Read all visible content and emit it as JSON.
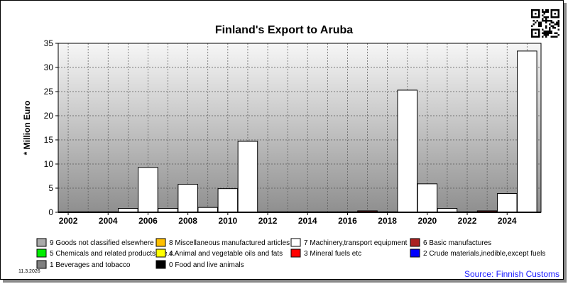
{
  "chart_data": {
    "type": "bar",
    "title": "Finland's Export to Aruba",
    "ylabel": "* Million Euro",
    "ylim": [
      0,
      35
    ],
    "yticks": [
      0,
      5,
      10,
      15,
      20,
      25,
      30,
      35
    ],
    "xlim": [
      2001.5,
      2025.7
    ],
    "xticks": [
      2002,
      2004,
      2006,
      2008,
      2010,
      2012,
      2014,
      2016,
      2018,
      2020,
      2022,
      2024
    ],
    "grid": true,
    "stacked": true,
    "series": [
      {
        "name": "7 Machinery,transport equipment",
        "color": "#ffffff",
        "x": [
          2002,
          2003,
          2004,
          2005,
          2006,
          2007,
          2008,
          2009,
          2010,
          2011,
          2012,
          2013,
          2014,
          2015,
          2016,
          2017,
          2018,
          2019,
          2020,
          2021,
          2022,
          2023,
          2024,
          2025
        ],
        "values": [
          0.1,
          0.1,
          0.1,
          0.8,
          9.3,
          0.8,
          5.8,
          1.0,
          4.9,
          14.7,
          0.1,
          0.1,
          0.1,
          0.1,
          0.1,
          0.1,
          0.1,
          25.3,
          5.9,
          0.8,
          0.1,
          0.1,
          3.9,
          33.4
        ]
      },
      {
        "name": "6 Basic manufactures",
        "color": "#aa2222",
        "x": [
          2017,
          2023
        ],
        "values": [
          0.2,
          0.2
        ]
      }
    ],
    "legend": [
      {
        "label": "9 Goods not classified elsewhere",
        "color": "#aaaaaa"
      },
      {
        "label": "8 Miscellaneous manufactured articles",
        "color": "#ffc000"
      },
      {
        "label": "7 Machinery,transport equipment",
        "color": "#ffffff"
      },
      {
        "label": "6 Basic manufactures",
        "color": "#aa2222"
      },
      {
        "label": "5 Chemicals and related products,n.e.s.",
        "color": "#00ee00"
      },
      {
        "label": "4 Animal and vegetable oils and fats",
        "color": "#ffff00"
      },
      {
        "label": "3 Mineral fuels etc",
        "color": "#ff0000"
      },
      {
        "label": "2 Crude materials,inedible,except fuels",
        "color": "#0000ff"
      },
      {
        "label": "1 Beverages and tobacco",
        "color": "#808080"
      },
      {
        "label": "0 Food and live animals",
        "color": "#000000"
      }
    ],
    "legend_position": "bottom"
  },
  "footer": {
    "date": "11.3.2026",
    "source": "Source: Finnish Customs"
  },
  "qr_icon": "qr-code-icon"
}
